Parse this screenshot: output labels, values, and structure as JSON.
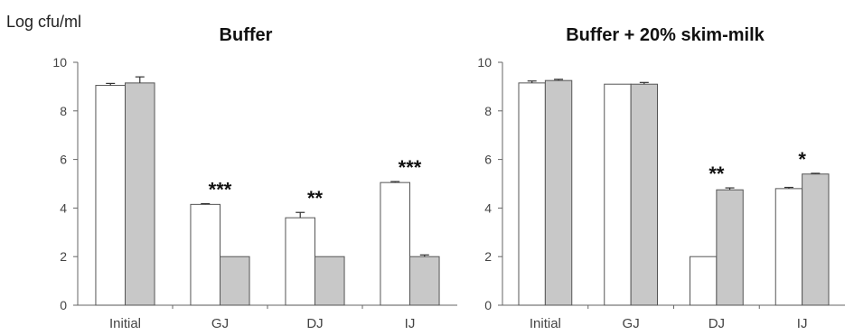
{
  "figure": {
    "ylabel": "Log cfu/ml"
  },
  "chart_data": [
    {
      "type": "bar",
      "title": "Buffer",
      "xlabel": "",
      "ylabel": "Log cfu/ml",
      "ylim": [
        0,
        10
      ],
      "yticks": [
        0,
        2,
        4,
        6,
        8,
        10
      ],
      "categories": [
        "Initial",
        "GJ",
        "DJ",
        "IJ"
      ],
      "series": [
        {
          "color": "#ffffff",
          "values": [
            9.05,
            4.15,
            3.6,
            5.05
          ],
          "errors": [
            0.08,
            0.03,
            0.22,
            0.04
          ]
        },
        {
          "color": "#c8c8c8",
          "values": [
            9.15,
            2.0,
            2.0,
            2.0
          ],
          "errors": [
            0.25,
            0.0,
            0.0,
            0.07
          ]
        }
      ],
      "significance": [
        "",
        "***",
        "**",
        "***"
      ],
      "grid": false,
      "legend": "none"
    },
    {
      "type": "bar",
      "title": "Buffer + 20% skim-milk",
      "xlabel": "",
      "ylabel": "",
      "ylim": [
        0,
        10
      ],
      "yticks": [
        0,
        2,
        4,
        6,
        8,
        10
      ],
      "categories": [
        "Initial",
        "GJ",
        "DJ",
        "IJ"
      ],
      "series": [
        {
          "color": "#ffffff",
          "values": [
            9.15,
            9.1,
            2.0,
            4.8
          ],
          "errors": [
            0.08,
            0.0,
            0.0,
            0.05
          ]
        },
        {
          "color": "#c8c8c8",
          "values": [
            9.25,
            9.1,
            4.75,
            5.4
          ],
          "errors": [
            0.05,
            0.07,
            0.08,
            0.03
          ]
        }
      ],
      "significance": [
        "",
        "",
        "**",
        "*"
      ],
      "grid": false,
      "legend": "none"
    }
  ]
}
